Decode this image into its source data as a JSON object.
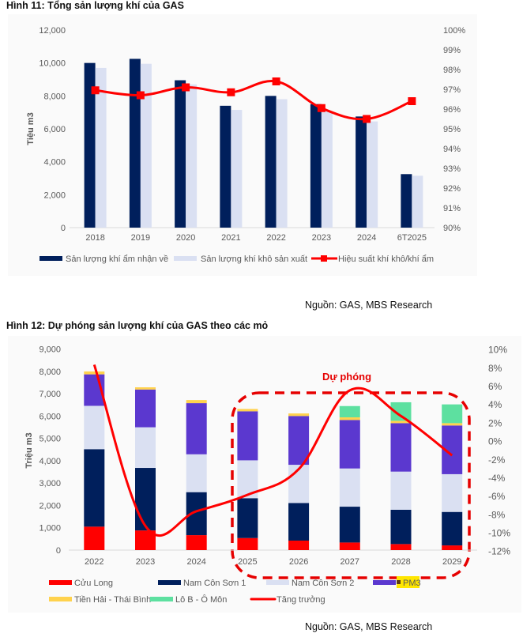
{
  "figure11": {
    "title": "Hình 11: Tổng sản lượng khí của GAS",
    "source": "Nguồn: GAS, MBS Research"
  },
  "figure12": {
    "title": "Hình 12: Dự phóng sản lượng khí của GAS theo các mỏ",
    "source": "Nguồn: GAS, MBS Research",
    "annotation": "Dự phóng"
  },
  "chart_data": [
    {
      "type": "bar",
      "title": "Hình 11: Tổng sản lượng khí của GAS",
      "categories": [
        "2018",
        "2019",
        "2020",
        "2021",
        "2022",
        "2023",
        "2024",
        "6T2025"
      ],
      "ylabel": "Tiệu m3",
      "ylim": [
        0,
        12000
      ],
      "yticks": [
        "0",
        "2,000",
        "4,000",
        "6,000",
        "8,000",
        "10,000",
        "12,000"
      ],
      "y2lim": [
        90,
        100
      ],
      "y2ticks": [
        "90%",
        "91%",
        "92%",
        "93%",
        "94%",
        "95%",
        "96%",
        "97%",
        "98%",
        "99%",
        "100%"
      ],
      "grid": false,
      "legend_position": "bottom",
      "series": [
        {
          "name": "Sản lượng khí ẩm nhận về",
          "kind": "bar",
          "axis": "left",
          "color": "#001f5c",
          "values": [
            10000,
            10250,
            8950,
            7400,
            8000,
            7500,
            6750,
            3250
          ]
        },
        {
          "name": "Sản lượng khí khô sản xuất",
          "kind": "bar",
          "axis": "left",
          "color": "#dae0f2",
          "values": [
            9700,
            9950,
            8700,
            7150,
            7800,
            7050,
            6450,
            3150
          ]
        },
        {
          "name": "Hiệu suất khí khô/khí ẩm",
          "kind": "line",
          "axis": "right",
          "unit": "%",
          "color": "#ff0000",
          "values": [
            96.95,
            96.7,
            97.1,
            96.85,
            97.4,
            96.05,
            95.5,
            96.4
          ]
        }
      ]
    },
    {
      "type": "bar",
      "stacked": true,
      "title": "Hình 12: Dự phóng sản lượng khí của GAS theo các mỏ",
      "categories": [
        "2022",
        "2023",
        "2024",
        "2025",
        "2026",
        "2027",
        "2028",
        "2029"
      ],
      "ylabel": "Triệu m3",
      "ylim": [
        0,
        9000
      ],
      "yticks": [
        "0",
        "1,000",
        "2,000",
        "3,000",
        "4,000",
        "5,000",
        "6,000",
        "7,000",
        "8,000",
        "9,000"
      ],
      "y2lim": [
        -12,
        10
      ],
      "y2ticks": [
        "-12%",
        "-10%",
        "-8%",
        "-6%",
        "-4%",
        "-2%",
        "0%",
        "2%",
        "4%",
        "6%",
        "8%",
        "10%"
      ],
      "grid": false,
      "legend_position": "bottom",
      "annotation": {
        "text": "Dự phóng",
        "covers": [
          "2025",
          "2026",
          "2027",
          "2028",
          "2029"
        ]
      },
      "series": [
        {
          "name": "Cửu Long",
          "kind": "bar",
          "color": "#ff0000",
          "values": [
            1050,
            880,
            670,
            540,
            425,
            340,
            270,
            210
          ]
        },
        {
          "name": "Nam Côn Sơn 1",
          "kind": "bar",
          "color": "#001f5c",
          "values": [
            3470,
            2800,
            1925,
            1785,
            1685,
            1605,
            1535,
            1500
          ]
        },
        {
          "name": "Nam Côn Sơn 2",
          "kind": "bar",
          "color": "#dae0f2",
          "values": [
            1940,
            1820,
            1695,
            1695,
            1710,
            1710,
            1710,
            1690
          ]
        },
        {
          "name": "PM3",
          "kind": "bar",
          "color": "#5b38cf",
          "values": [
            1410,
            1690,
            2290,
            2195,
            2185,
            2170,
            2170,
            2180
          ]
        },
        {
          "name": "Tiền Hải - Thái Bình",
          "kind": "bar",
          "color": "#ffd24d",
          "values": [
            130,
            100,
            140,
            105,
            115,
            120,
            105,
            105
          ]
        },
        {
          "name": "Lô B - Ô Môn",
          "kind": "bar",
          "color": "#5de0a0",
          "values": [
            0,
            0,
            0,
            0,
            0,
            505,
            830,
            840
          ]
        },
        {
          "name": "Tăng trưởng",
          "kind": "line",
          "axis": "right",
          "unit": "%",
          "color": "#ff0000",
          "values": [
            8.3,
            -9.3,
            -7.7,
            -5.9,
            -3.1,
            5.5,
            2.7,
            -1.6
          ]
        }
      ],
      "legend_highlight": "PM3"
    }
  ]
}
